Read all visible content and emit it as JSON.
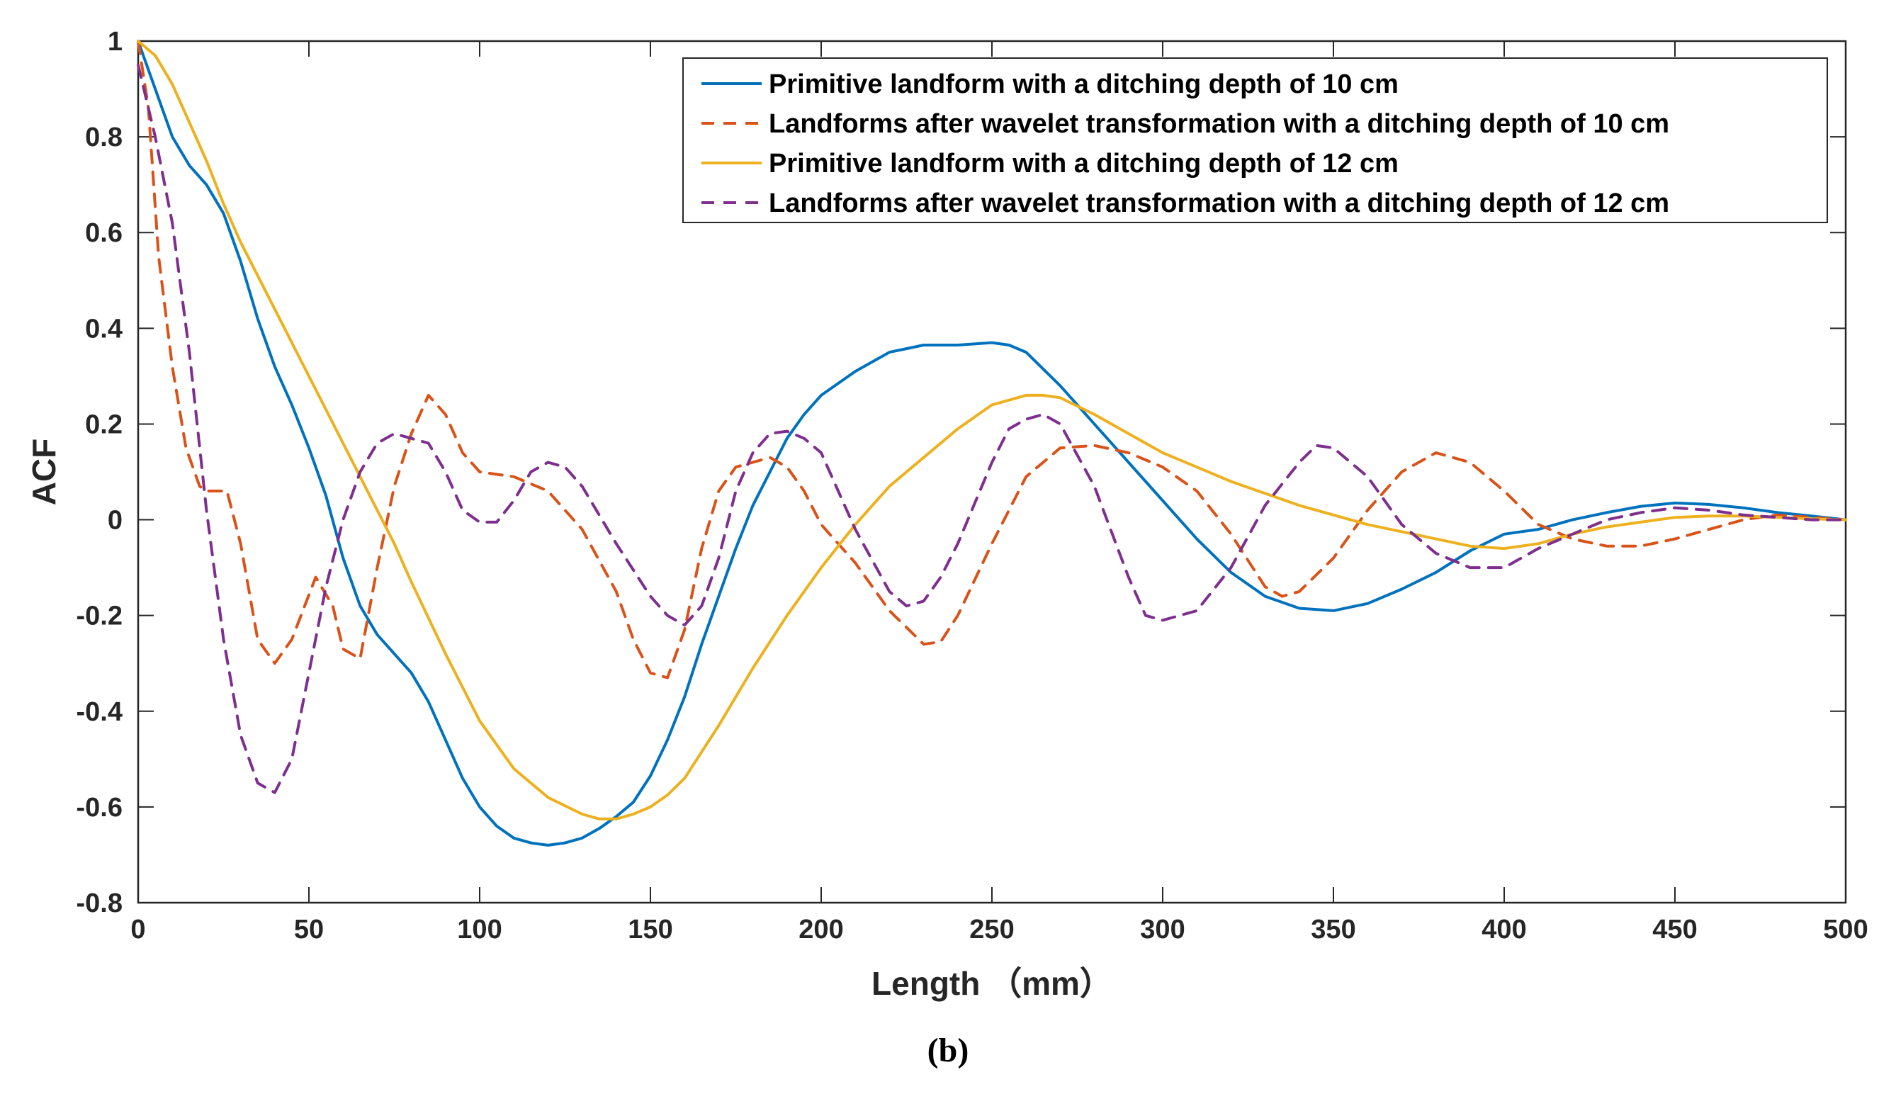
{
  "chart_data": {
    "type": "line",
    "xlabel": "Length （mm）",
    "ylabel": "ACF",
    "caption": "(b)",
    "xlim": [
      0,
      500
    ],
    "ylim": [
      -0.8,
      1
    ],
    "xticks": [
      0,
      50,
      100,
      150,
      200,
      250,
      300,
      350,
      400,
      450,
      500
    ],
    "yticks": [
      -0.8,
      -0.6,
      -0.4,
      -0.2,
      0,
      0.2,
      0.4,
      0.6,
      0.8,
      1
    ],
    "xtick_labels": [
      "0",
      "50",
      "100",
      "150",
      "200",
      "250",
      "300",
      "350",
      "400",
      "450",
      "500"
    ],
    "ytick_labels": [
      "-0.8",
      "-0.6",
      "-0.4",
      "-0.2",
      "0",
      "0.2",
      "0.4",
      "0.6",
      "0.8",
      "1"
    ],
    "legend_position": "top-right",
    "series": [
      {
        "name": "Primitive landform with a ditching depth of 10 cm",
        "color": "#0072BD",
        "style": "solid",
        "x": [
          0,
          5,
          10,
          15,
          20,
          25,
          30,
          35,
          40,
          45,
          50,
          55,
          60,
          65,
          70,
          75,
          80,
          85,
          90,
          95,
          100,
          105,
          110,
          115,
          120,
          125,
          130,
          135,
          140,
          145,
          150,
          155,
          160,
          165,
          170,
          175,
          180,
          185,
          190,
          195,
          200,
          210,
          220,
          230,
          240,
          250,
          255,
          260,
          270,
          280,
          290,
          300,
          310,
          320,
          330,
          340,
          350,
          360,
          370,
          380,
          390,
          400,
          410,
          420,
          430,
          440,
          450,
          460,
          470,
          480,
          490,
          500
        ],
        "y": [
          1,
          0.9,
          0.8,
          0.74,
          0.7,
          0.64,
          0.54,
          0.42,
          0.32,
          0.24,
          0.15,
          0.05,
          -0.08,
          -0.18,
          -0.24,
          -0.28,
          -0.32,
          -0.38,
          -0.46,
          -0.54,
          -0.6,
          -0.64,
          -0.665,
          -0.675,
          -0.68,
          -0.675,
          -0.665,
          -0.645,
          -0.62,
          -0.59,
          -0.535,
          -0.46,
          -0.37,
          -0.26,
          -0.16,
          -0.06,
          0.03,
          0.1,
          0.17,
          0.22,
          0.26,
          0.31,
          0.35,
          0.365,
          0.365,
          0.37,
          0.365,
          0.35,
          0.28,
          0.2,
          0.12,
          0.04,
          -0.04,
          -0.11,
          -0.16,
          -0.185,
          -0.19,
          -0.175,
          -0.145,
          -0.11,
          -0.065,
          -0.03,
          -0.02,
          0,
          0.015,
          0.028,
          0.035,
          0.032,
          0.025,
          0.015,
          0.008,
          0
        ]
      },
      {
        "name": "Landforms after wavelet transformation with a ditching depth of 10 cm",
        "color": "#D95319",
        "style": "dashed",
        "x": [
          0,
          3,
          6,
          10,
          14,
          18,
          20,
          23,
          26,
          30,
          35,
          40,
          45,
          52,
          57,
          60,
          65,
          70,
          75,
          80,
          85,
          90,
          95,
          100,
          110,
          120,
          130,
          140,
          145,
          150,
          155,
          160,
          165,
          170,
          175,
          180,
          185,
          190,
          195,
          200,
          210,
          220,
          230,
          235,
          240,
          250,
          260,
          270,
          280,
          290,
          300,
          310,
          320,
          330,
          335,
          340,
          350,
          360,
          370,
          380,
          390,
          400,
          410,
          420,
          430,
          440,
          450,
          460,
          470,
          480,
          490,
          500
        ],
        "y": [
          1,
          0.86,
          0.55,
          0.32,
          0.15,
          0.07,
          0.06,
          0.06,
          0.06,
          -0.05,
          -0.25,
          -0.3,
          -0.25,
          -0.12,
          -0.18,
          -0.27,
          -0.29,
          -0.1,
          0.07,
          0.18,
          0.26,
          0.22,
          0.14,
          0.1,
          0.09,
          0.06,
          -0.02,
          -0.15,
          -0.25,
          -0.32,
          -0.33,
          -0.23,
          -0.06,
          0.06,
          0.11,
          0.12,
          0.13,
          0.11,
          0.06,
          -0.01,
          -0.09,
          -0.19,
          -0.26,
          -0.255,
          -0.2,
          -0.05,
          0.09,
          0.15,
          0.155,
          0.14,
          0.11,
          0.06,
          -0.03,
          -0.14,
          -0.16,
          -0.15,
          -0.08,
          0.02,
          0.1,
          0.14,
          0.12,
          0.06,
          -0.01,
          -0.04,
          -0.055,
          -0.055,
          -0.04,
          -0.02,
          0,
          0.01,
          0.005,
          0
        ]
      },
      {
        "name": "Primitive landform with a ditching depth of 12 cm",
        "color": "#EDB120",
        "style": "solid",
        "x": [
          0,
          5,
          10,
          15,
          20,
          25,
          30,
          40,
          50,
          60,
          70,
          75,
          80,
          90,
          100,
          110,
          120,
          130,
          135,
          140,
          145,
          150,
          155,
          160,
          170,
          180,
          190,
          200,
          210,
          220,
          230,
          240,
          250,
          260,
          265,
          270,
          280,
          290,
          300,
          310,
          320,
          330,
          340,
          350,
          360,
          370,
          380,
          390,
          400,
          410,
          420,
          430,
          440,
          450,
          460,
          470,
          480,
          490,
          500
        ],
        "y": [
          1,
          0.97,
          0.91,
          0.83,
          0.75,
          0.66,
          0.58,
          0.44,
          0.3,
          0.16,
          0.02,
          -0.05,
          -0.13,
          -0.28,
          -0.42,
          -0.52,
          -0.58,
          -0.615,
          -0.625,
          -0.625,
          -0.615,
          -0.6,
          -0.575,
          -0.54,
          -0.43,
          -0.31,
          -0.2,
          -0.1,
          -0.01,
          0.07,
          0.13,
          0.19,
          0.24,
          0.26,
          0.26,
          0.255,
          0.22,
          0.18,
          0.14,
          0.11,
          0.08,
          0.055,
          0.03,
          0.01,
          -0.01,
          -0.025,
          -0.04,
          -0.055,
          -0.06,
          -0.05,
          -0.03,
          -0.015,
          -0.005,
          0.005,
          0.008,
          0.008,
          0.005,
          0.002,
          0
        ]
      },
      {
        "name": "Landforms after wavelet transformation with a ditching depth of 12 cm",
        "color": "#7E2F8E",
        "style": "dashed",
        "x": [
          0,
          5,
          10,
          15,
          20,
          25,
          30,
          35,
          40,
          45,
          50,
          55,
          60,
          65,
          70,
          75,
          80,
          85,
          90,
          95,
          100,
          105,
          110,
          115,
          120,
          125,
          130,
          140,
          150,
          155,
          160,
          165,
          170,
          175,
          180,
          185,
          190,
          195,
          200,
          210,
          220,
          225,
          230,
          235,
          240,
          250,
          255,
          260,
          265,
          270,
          280,
          290,
          295,
          300,
          310,
          320,
          330,
          340,
          345,
          350,
          360,
          370,
          380,
          390,
          400,
          410,
          420,
          430,
          440,
          450,
          460,
          470,
          480,
          490,
          500
        ],
        "y": [
          0.95,
          0.8,
          0.62,
          0.35,
          0.02,
          -0.25,
          -0.45,
          -0.55,
          -0.57,
          -0.5,
          -0.32,
          -0.14,
          0,
          0.1,
          0.16,
          0.18,
          0.17,
          0.16,
          0.1,
          0.02,
          -0.005,
          -0.005,
          0.04,
          0.1,
          0.12,
          0.11,
          0.07,
          -0.05,
          -0.16,
          -0.2,
          -0.22,
          -0.18,
          -0.08,
          0.06,
          0.14,
          0.18,
          0.185,
          0.17,
          0.14,
          -0.02,
          -0.15,
          -0.18,
          -0.17,
          -0.12,
          -0.05,
          0.12,
          0.19,
          0.21,
          0.22,
          0.2,
          0.07,
          -0.12,
          -0.2,
          -0.21,
          -0.19,
          -0.1,
          0.03,
          0.12,
          0.155,
          0.15,
          0.09,
          -0.01,
          -0.07,
          -0.1,
          -0.1,
          -0.06,
          -0.03,
          0,
          0.015,
          0.025,
          0.02,
          0.01,
          0.005,
          0,
          0
        ]
      }
    ]
  }
}
